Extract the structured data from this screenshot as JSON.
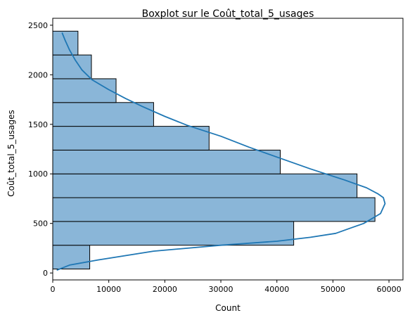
{
  "chart_data": {
    "type": "bar",
    "orientation": "horizontal",
    "title": "Boxplot sur le Coût_total_5_usages",
    "xlabel": "Count",
    "ylabel": "Coût_total_5_usages",
    "xlim": [
      0,
      62500
    ],
    "ylim": [
      -70,
      2570
    ],
    "xticks": [
      0,
      10000,
      20000,
      30000,
      40000,
      50000,
      60000
    ],
    "yticks": [
      0,
      500,
      1000,
      1500,
      2000,
      2500
    ],
    "xtick_labels": [
      "0",
      "10000",
      "20000",
      "30000",
      "40000",
      "50000",
      "60000"
    ],
    "ytick_labels": [
      "0",
      "500",
      "1000",
      "1500",
      "2000",
      "2500"
    ],
    "grid": false,
    "legend": "none",
    "bins": [
      {
        "y0": 40,
        "y1": 280,
        "count": 6600
      },
      {
        "y0": 280,
        "y1": 520,
        "count": 43000
      },
      {
        "y0": 520,
        "y1": 760,
        "count": 57500
      },
      {
        "y0": 760,
        "y1": 1000,
        "count": 54300
      },
      {
        "y0": 1000,
        "y1": 1240,
        "count": 40600
      },
      {
        "y0": 1240,
        "y1": 1480,
        "count": 27900
      },
      {
        "y0": 1480,
        "y1": 1720,
        "count": 18000
      },
      {
        "y0": 1720,
        "y1": 1960,
        "count": 11300
      },
      {
        "y0": 1960,
        "y1": 2200,
        "count": 6900
      },
      {
        "y0": 2200,
        "y1": 2440,
        "count": 4500
      }
    ],
    "kde": {
      "x": [
        800,
        3000,
        8000,
        18000,
        30000,
        40000,
        46000,
        50500,
        53000,
        55500,
        58500,
        59300,
        59000,
        58000,
        56000,
        52000,
        46000,
        40000,
        35000,
        30000,
        24000,
        20000,
        16000,
        13000,
        10000,
        7000,
        5200,
        4000,
        3000,
        2200,
        1700
      ],
      "y": [
        30,
        80,
        130,
        220,
        280,
        320,
        360,
        400,
        450,
        500,
        600,
        700,
        760,
        800,
        860,
        940,
        1050,
        1170,
        1270,
        1380,
        1490,
        1580,
        1680,
        1760,
        1850,
        1950,
        2050,
        2150,
        2250,
        2350,
        2420
      ]
    },
    "colors": {
      "bar_fill": "#8ab6d8",
      "bar_edge": "#000000",
      "kde_line": "#1f77b4",
      "axes": "#000000"
    }
  }
}
